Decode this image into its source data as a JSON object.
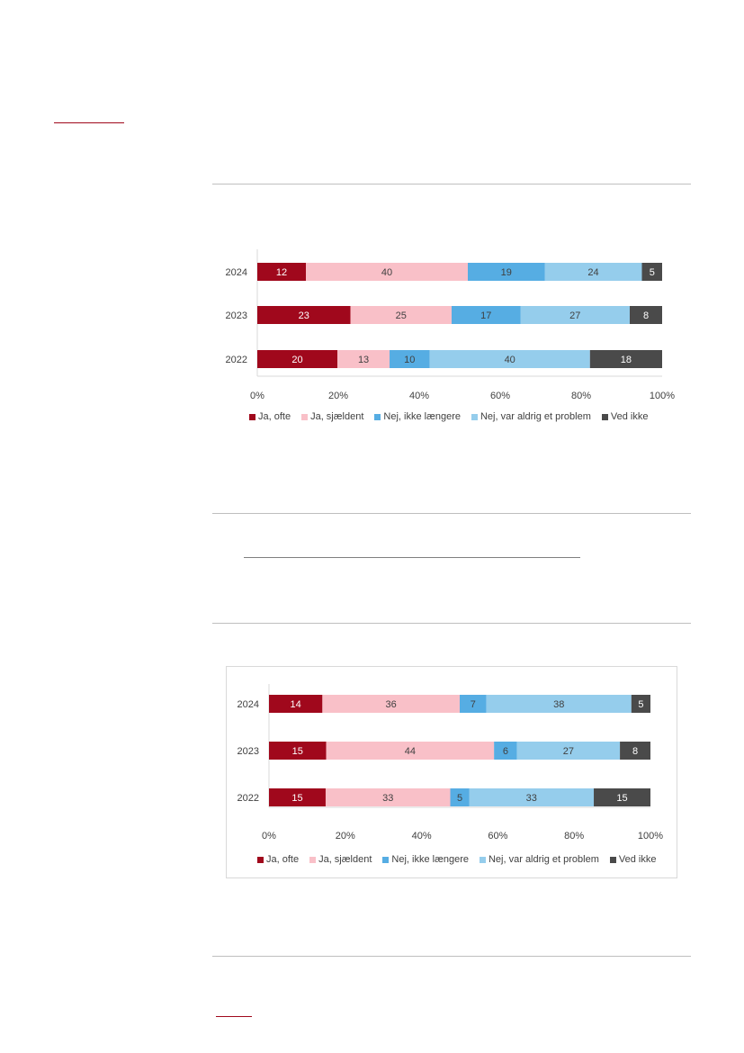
{
  "colors": {
    "ja_ofte": "#a0081c",
    "ja_sjaeldent": "#f9c0c8",
    "nej_ikke_laengere": "#56ade3",
    "nej_aldrig": "#95cdec",
    "ved_ikke": "#4a4a4a",
    "axis": "#d9d9d9",
    "text": "#404040"
  },
  "chart_data": [
    {
      "type": "bar",
      "orientation": "horizontal",
      "stacked": "percent",
      "categories": [
        "2024",
        "2023",
        "2022"
      ],
      "series": [
        {
          "name": "Ja, ofte",
          "color": "#a0081c",
          "label_color": "#ffffff",
          "values": [
            12,
            23,
            20
          ]
        },
        {
          "name": "Ja, sjældent",
          "color": "#f9c0c8",
          "label_color": "#404040",
          "values": [
            40,
            25,
            13
          ]
        },
        {
          "name": "Nej, ikke længere",
          "color": "#56ade3",
          "label_color": "#404040",
          "values": [
            19,
            17,
            10
          ]
        },
        {
          "name": "Nej, var aldrig et problem",
          "color": "#95cdec",
          "label_color": "#404040",
          "values": [
            24,
            27,
            40
          ]
        },
        {
          "name": "Ved ikke",
          "color": "#4a4a4a",
          "label_color": "#ffffff",
          "values": [
            5,
            8,
            18
          ]
        }
      ],
      "xticks": [
        "0%",
        "20%",
        "40%",
        "60%",
        "80%",
        "100%"
      ],
      "xlim": [
        0,
        100
      ],
      "legend_position": "bottom",
      "grid": false
    },
    {
      "type": "bar",
      "orientation": "horizontal",
      "stacked": "percent",
      "categories": [
        "2024",
        "2023",
        "2022"
      ],
      "series": [
        {
          "name": "Ja, ofte",
          "color": "#a0081c",
          "label_color": "#ffffff",
          "values": [
            14,
            15,
            15
          ]
        },
        {
          "name": "Ja, sjældent",
          "color": "#f9c0c8",
          "label_color": "#404040",
          "values": [
            36,
            44,
            33
          ]
        },
        {
          "name": "Nej, ikke længere",
          "color": "#56ade3",
          "label_color": "#404040",
          "values": [
            7,
            6,
            5
          ]
        },
        {
          "name": "Nej, var aldrig et problem",
          "color": "#95cdec",
          "label_color": "#404040",
          "values": [
            38,
            27,
            33
          ]
        },
        {
          "name": "Ved ikke",
          "color": "#4a4a4a",
          "label_color": "#ffffff",
          "values": [
            5,
            8,
            15
          ]
        }
      ],
      "xticks": [
        "0%",
        "20%",
        "40%",
        "60%",
        "80%",
        "100%"
      ],
      "xlim": [
        0,
        100
      ],
      "legend_position": "bottom",
      "grid": false
    }
  ]
}
